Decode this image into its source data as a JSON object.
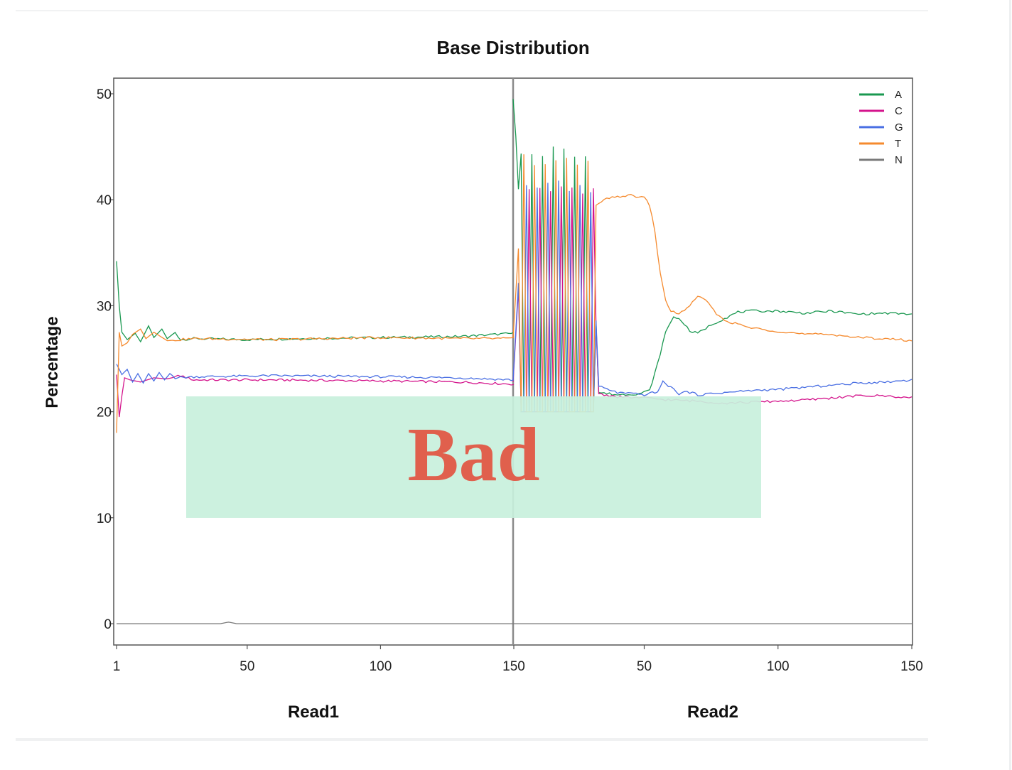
{
  "overlay": {
    "label": "Bad",
    "background": "#c8f0dc",
    "text_color": "#e0604d"
  },
  "chart_data": {
    "type": "line",
    "title": "Base Distribution",
    "ylabel": "Percentage",
    "ylim": [
      0,
      50
    ],
    "y_ticks": [
      "0",
      "10",
      "20",
      "30",
      "40",
      "50"
    ],
    "panels": [
      {
        "xlabel": "Read1",
        "xlim": [
          1,
          150
        ],
        "x_ticks": [
          "1",
          "50",
          "100",
          "150"
        ]
      },
      {
        "xlabel": "Read2",
        "xlim": [
          1,
          150
        ],
        "x_ticks": [
          "50",
          "100",
          "150"
        ]
      }
    ],
    "legend": [
      {
        "name": "A",
        "color": "#1a9850"
      },
      {
        "name": "C",
        "color": "#d4148c"
      },
      {
        "name": "G",
        "color": "#4a6fe3"
      },
      {
        "name": "T",
        "color": "#f58a2e"
      },
      {
        "name": "N",
        "color": "#7a7a7a"
      }
    ],
    "series": [
      {
        "name": "A",
        "color": "#1a9850",
        "read1": [
          [
            1,
            34.2
          ],
          [
            2,
            30
          ],
          [
            3,
            27.5
          ],
          [
            5,
            26.8
          ],
          [
            8,
            27.4
          ],
          [
            10,
            26.6
          ],
          [
            13,
            28.1
          ],
          [
            15,
            27
          ],
          [
            18,
            27.8
          ],
          [
            20,
            26.9
          ],
          [
            23,
            27.5
          ],
          [
            25,
            26.8
          ],
          [
            30,
            26.9
          ],
          [
            50,
            26.8
          ],
          [
            70,
            26.9
          ],
          [
            100,
            27
          ],
          [
            130,
            27.1
          ],
          [
            150,
            27.4
          ]
        ],
        "read2": [
          [
            1,
            49.5
          ],
          [
            2,
            46
          ],
          [
            3,
            41
          ],
          [
            4,
            35
          ],
          [
            5,
            41.5
          ],
          [
            6,
            44.5
          ],
          [
            30,
            41.5
          ],
          [
            33,
            21.8
          ],
          [
            40,
            21.6
          ],
          [
            48,
            21.7
          ],
          [
            52,
            22
          ],
          [
            55,
            24.5
          ],
          [
            58,
            27.5
          ],
          [
            61,
            29
          ],
          [
            64,
            28.6
          ],
          [
            67,
            27.6
          ],
          [
            70,
            27.4
          ],
          [
            75,
            28.2
          ],
          [
            80,
            28.8
          ],
          [
            85,
            29.4
          ],
          [
            90,
            29.5
          ],
          [
            100,
            29.5
          ],
          [
            110,
            29.3
          ],
          [
            120,
            29.5
          ],
          [
            130,
            29.2
          ],
          [
            140,
            29.3
          ],
          [
            150,
            29.2
          ]
        ]
      },
      {
        "name": "C",
        "color": "#d4148c",
        "read1": [
          [
            1,
            23.5
          ],
          [
            2,
            19.5
          ],
          [
            3,
            21.5
          ],
          [
            4,
            23.2
          ],
          [
            6,
            23
          ],
          [
            10,
            22.8
          ],
          [
            15,
            23.2
          ],
          [
            20,
            23.1
          ],
          [
            25,
            23.4
          ],
          [
            30,
            23
          ],
          [
            60,
            23
          ],
          [
            100,
            22.9
          ],
          [
            130,
            22.8
          ],
          [
            150,
            22.6
          ]
        ],
        "read2": [
          [
            1,
            22.8
          ],
          [
            5,
            40.5
          ],
          [
            30,
            41
          ],
          [
            33,
            21.7
          ],
          [
            40,
            21.4
          ],
          [
            50,
            21.3
          ],
          [
            60,
            21.1
          ],
          [
            70,
            21
          ],
          [
            80,
            20.8
          ],
          [
            90,
            20.9
          ],
          [
            100,
            21
          ],
          [
            110,
            21.1
          ],
          [
            120,
            21.3
          ],
          [
            130,
            21.5
          ],
          [
            140,
            21.5
          ],
          [
            150,
            21.3
          ]
        ]
      },
      {
        "name": "G",
        "color": "#4a6fe3",
        "read1": [
          [
            1,
            24.5
          ],
          [
            3,
            23.5
          ],
          [
            5,
            24
          ],
          [
            7,
            22.8
          ],
          [
            9,
            23.6
          ],
          [
            11,
            22.7
          ],
          [
            13,
            23.6
          ],
          [
            15,
            22.9
          ],
          [
            17,
            23.7
          ],
          [
            19,
            23
          ],
          [
            21,
            23.6
          ],
          [
            23,
            23.2
          ],
          [
            30,
            23.3
          ],
          [
            60,
            23.4
          ],
          [
            100,
            23.3
          ],
          [
            130,
            23.2
          ],
          [
            150,
            23
          ]
        ],
        "read2": [
          [
            1,
            23
          ],
          [
            5,
            41.3
          ],
          [
            30,
            41
          ],
          [
            33,
            22.4
          ],
          [
            40,
            21.8
          ],
          [
            50,
            21.6
          ],
          [
            55,
            21.9
          ],
          [
            57,
            22.8
          ],
          [
            60,
            22.3
          ],
          [
            63,
            21.7
          ],
          [
            66,
            21.9
          ],
          [
            70,
            21.6
          ],
          [
            80,
            21.8
          ],
          [
            90,
            22
          ],
          [
            100,
            22.1
          ],
          [
            110,
            22.3
          ],
          [
            120,
            22.5
          ],
          [
            130,
            22.7
          ],
          [
            140,
            22.8
          ],
          [
            150,
            23
          ]
        ]
      },
      {
        "name": "T",
        "color": "#f58a2e",
        "read1": [
          [
            1,
            18
          ],
          [
            2,
            27.5
          ],
          [
            3,
            26.2
          ],
          [
            5,
            26.5
          ],
          [
            7,
            27.3
          ],
          [
            10,
            27.8
          ],
          [
            12,
            26.9
          ],
          [
            15,
            27.5
          ],
          [
            20,
            26.7
          ],
          [
            25,
            26.8
          ],
          [
            30,
            26.9
          ],
          [
            60,
            26.8
          ],
          [
            100,
            27
          ],
          [
            130,
            26.9
          ],
          [
            150,
            26.9
          ]
        ],
        "read2": [
          [
            1,
            27
          ],
          [
            5,
            43.8
          ],
          [
            30,
            43
          ],
          [
            31,
            39.3
          ],
          [
            35,
            40
          ],
          [
            40,
            40.3
          ],
          [
            45,
            40.4
          ],
          [
            50,
            40.2
          ],
          [
            52,
            39.5
          ],
          [
            54,
            37
          ],
          [
            56,
            33
          ],
          [
            58,
            30.5
          ],
          [
            60,
            29.5
          ],
          [
            63,
            29.2
          ],
          [
            66,
            29.8
          ],
          [
            70,
            30.8
          ],
          [
            73,
            30.6
          ],
          [
            76,
            29.5
          ],
          [
            80,
            28.6
          ],
          [
            90,
            27.9
          ],
          [
            100,
            27.6
          ],
          [
            110,
            27.3
          ],
          [
            120,
            27.3
          ],
          [
            130,
            27
          ],
          [
            140,
            26.9
          ],
          [
            150,
            26.7
          ]
        ]
      },
      {
        "name": "N",
        "color": "#7a7a7a",
        "read1": [
          [
            1,
            0
          ],
          [
            40,
            0
          ],
          [
            43,
            0.15
          ],
          [
            46,
            0
          ],
          [
            150,
            0
          ]
        ],
        "read2": [
          [
            1,
            0
          ],
          [
            150,
            0
          ]
        ]
      }
    ],
    "read2_oscillation": {
      "x_range": [
        4,
        31
      ],
      "period": 4,
      "order": [
        "A",
        "C",
        "G",
        "T"
      ],
      "peaks": {
        "A": 44.5,
        "C": 41,
        "G": 41.3,
        "T": 43.8
      },
      "troughs": {
        "A": 20,
        "C": 20,
        "G": 20,
        "T": 20
      }
    }
  }
}
